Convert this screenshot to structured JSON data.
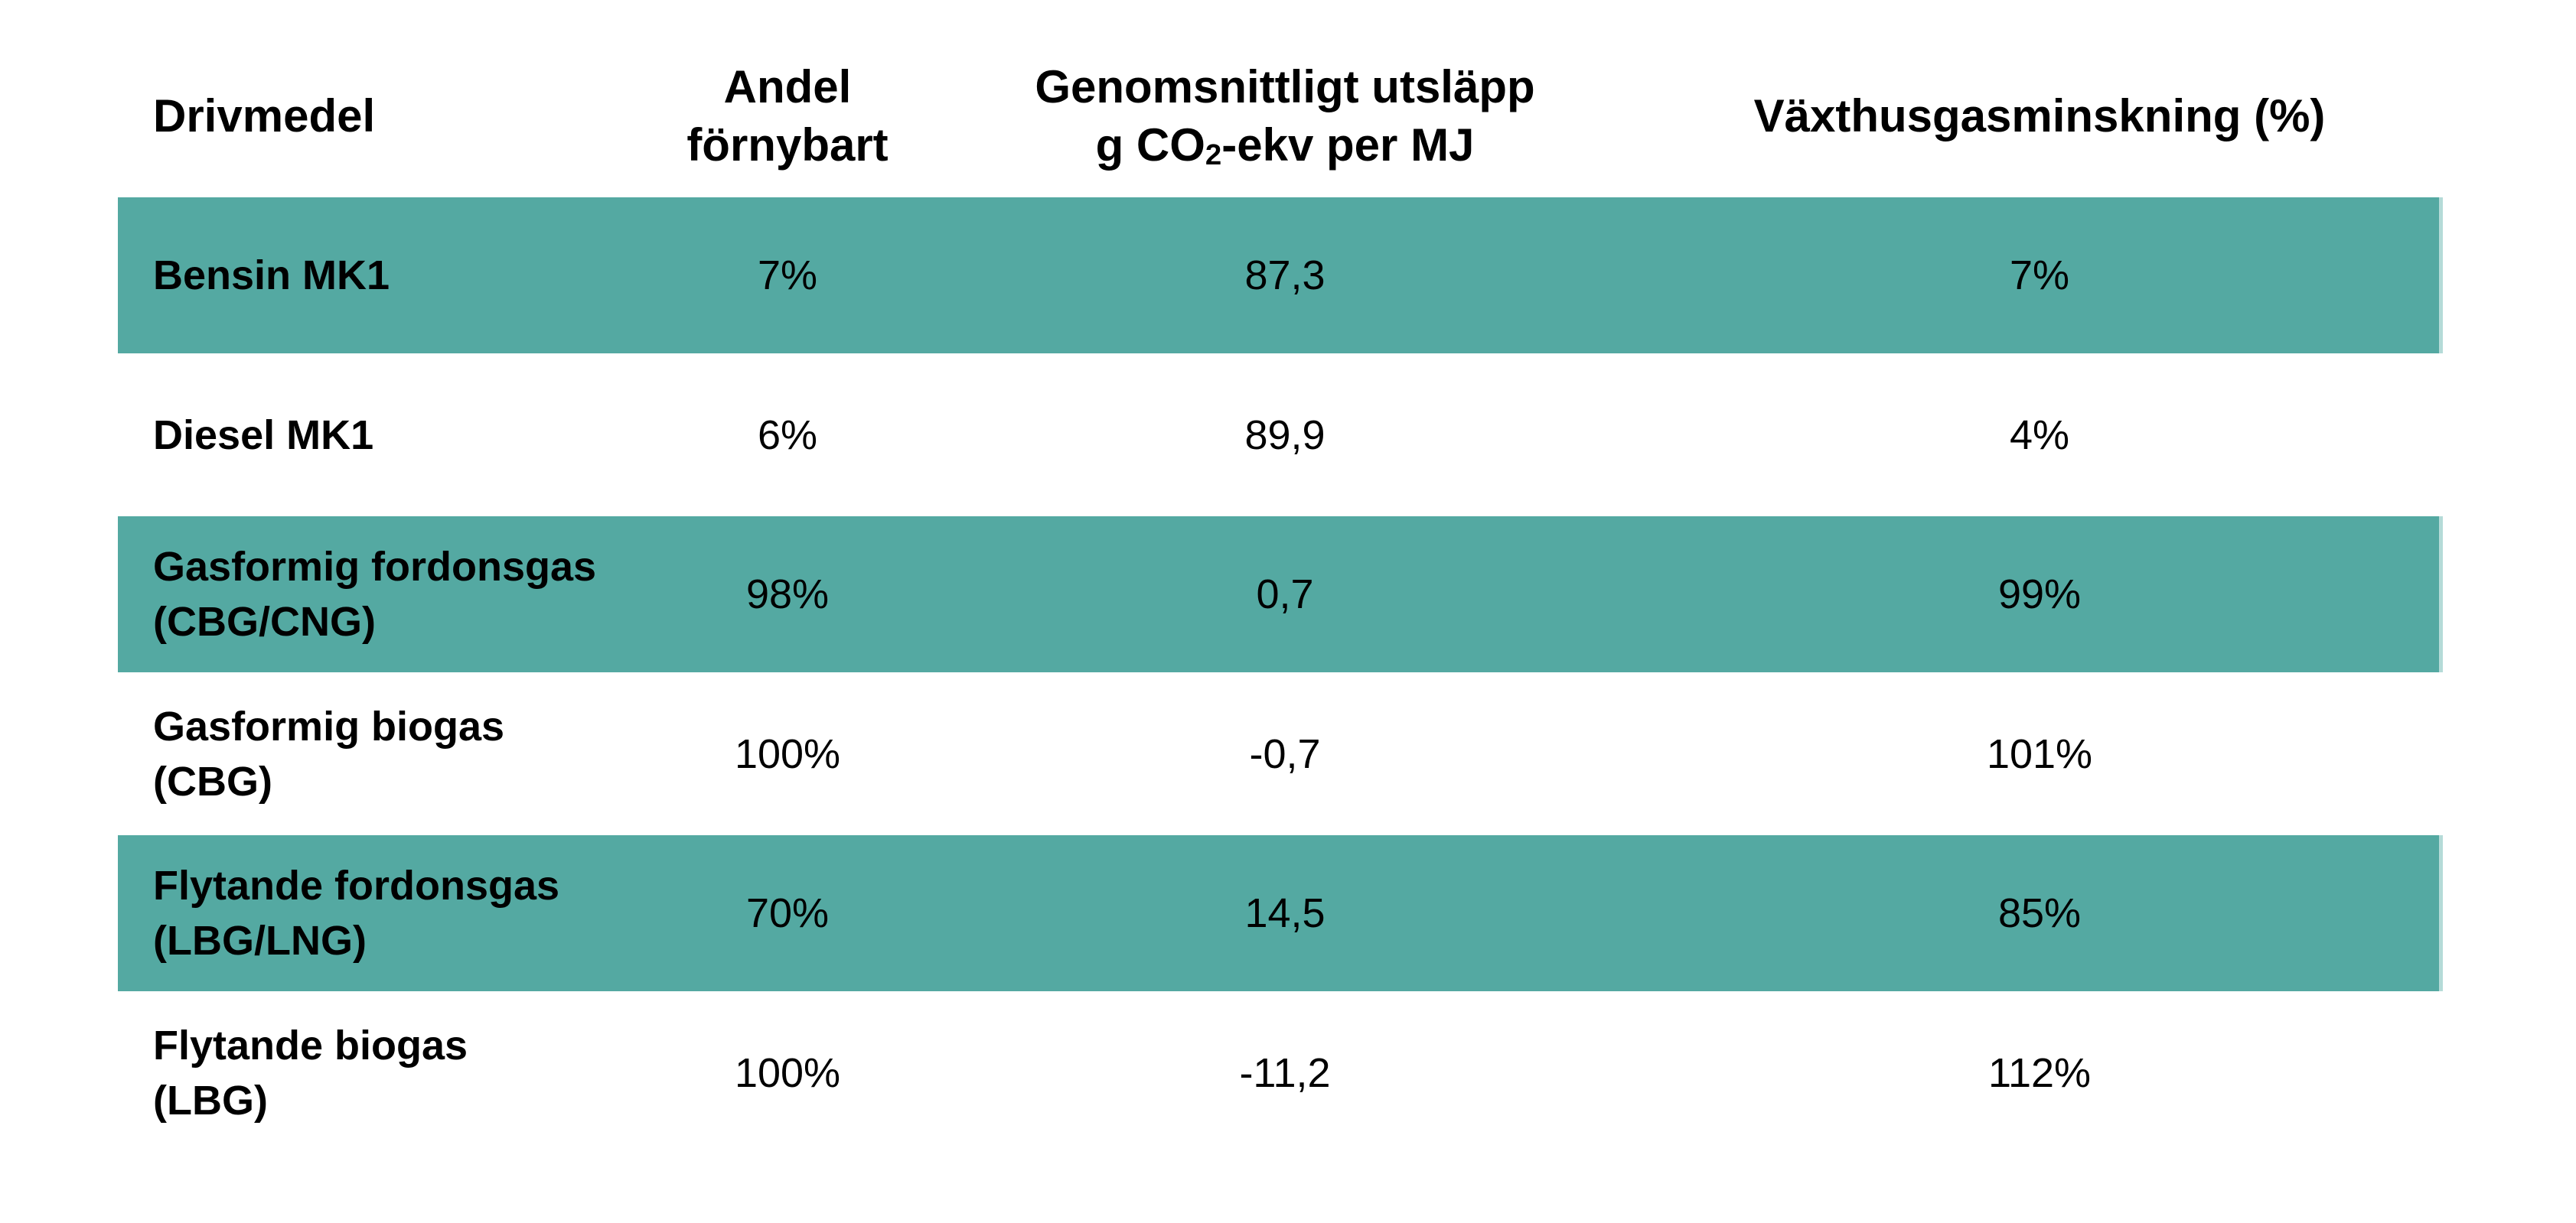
{
  "table": {
    "accent_color": "#54a9a2",
    "accent_edge_color": "#b5dbd8",
    "headers": {
      "fuel": {
        "line1": "Drivmedel"
      },
      "share": {
        "line1": "Andel",
        "line2": "förnybart"
      },
      "emission": {
        "line1": "Genomsnittligt utsläpp",
        "line2_pre": "g CO",
        "line2_sub": "2",
        "line2_post": "-ekv per MJ"
      },
      "reduction": {
        "line1": "Växthusgasminskning (%)"
      }
    },
    "rows": [
      {
        "fuel1": "Bensin MK1",
        "fuel2": "",
        "share": "7%",
        "emission": "87,3",
        "reduction": "7%"
      },
      {
        "fuel1": "Diesel MK1",
        "fuel2": "",
        "share": "6%",
        "emission": "89,9",
        "reduction": "4%"
      },
      {
        "fuel1": "Gasformig fordonsgas",
        "fuel2": "(CBG/CNG)",
        "share": "98%",
        "emission": "0,7",
        "reduction": "99%"
      },
      {
        "fuel1": "Gasformig biogas",
        "fuel2": "(CBG)",
        "share": "100%",
        "emission": "-0,7",
        "reduction": "101%"
      },
      {
        "fuel1": "Flytande fordonsgas",
        "fuel2": "(LBG/LNG)",
        "share": "70%",
        "emission": "14,5",
        "reduction": "85%"
      },
      {
        "fuel1": "Flytande biogas",
        "fuel2": "(LBG)",
        "share": "100%",
        "emission": "-11,2",
        "reduction": "112%"
      }
    ]
  }
}
